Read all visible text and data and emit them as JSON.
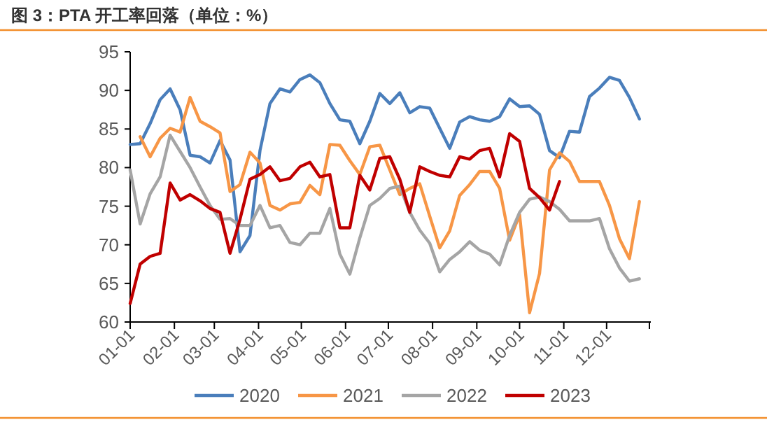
{
  "chart_data": {
    "type": "line",
    "title": "图 3：PTA 开工率回落（单位：%）",
    "x": [
      "--01-01",
      "--01-08",
      "--01-15",
      "--01-22",
      "--01-29",
      "--02-05",
      "--02-12",
      "--02-19",
      "--02-26",
      "--03-05",
      "--03-12",
      "--03-19",
      "--03-26",
      "--04-02",
      "--04-09",
      "--04-16",
      "--04-23",
      "--04-30",
      "--05-07",
      "--05-14",
      "--05-21",
      "--05-28",
      "--06-04",
      "--06-11",
      "--06-18",
      "--06-25",
      "--07-02",
      "--07-09",
      "--07-16",
      "--07-23",
      "--07-30",
      "--08-06",
      "--08-13",
      "--08-20",
      "--08-27",
      "--09-03",
      "--09-10",
      "--09-17",
      "--09-24",
      "--10-01",
      "--10-08",
      "--10-15",
      "--10-22",
      "--10-29",
      "--11-05",
      "--11-12",
      "--11-19",
      "--11-26",
      "--12-03",
      "--12-10",
      "--12-17",
      "--12-24"
    ],
    "series": [
      {
        "name": "2020",
        "color": "#4a7ebb",
        "values": [
          83.0,
          83.1,
          85.7,
          88.8,
          90.2,
          87.5,
          81.6,
          81.4,
          80.6,
          83.5,
          81.0,
          69.1,
          71.2,
          82.2,
          88.3,
          90.2,
          89.8,
          91.4,
          92.0,
          91.0,
          88.3,
          86.2,
          86.0,
          83.1,
          86.0,
          89.6,
          88.3,
          89.7,
          87.1,
          87.9,
          87.7,
          85.1,
          82.5,
          85.9,
          86.6,
          86.2,
          86.0,
          86.6,
          88.9,
          87.9,
          88.0,
          86.9,
          82.2,
          81.3,
          84.7,
          84.6,
          89.2,
          90.3,
          91.7,
          91.3,
          89.1,
          86.3
        ]
      },
      {
        "name": "2021",
        "color": "#f79646",
        "values": [
          null,
          84.0,
          81.4,
          83.8,
          85.1,
          84.6,
          89.1,
          86.0,
          85.3,
          84.5,
          76.9,
          77.8,
          82.0,
          80.6,
          75.1,
          74.5,
          75.3,
          75.5,
          77.7,
          76.5,
          83.0,
          82.9,
          80.9,
          79.1,
          82.7,
          82.9,
          79.7,
          76.5,
          77.3,
          77.9,
          73.7,
          69.6,
          71.8,
          76.4,
          77.8,
          79.5,
          79.5,
          77.3,
          70.6,
          73.9,
          61.2,
          66.3,
          79.7,
          81.9,
          80.8,
          78.2,
          78.2,
          78.2,
          75.1,
          70.8,
          68.2,
          75.6
        ]
      },
      {
        "name": "2022",
        "color": "#a5a5a5",
        "values": [
          79.7,
          72.7,
          76.6,
          78.8,
          84.2,
          82.1,
          80.0,
          77.5,
          75.1,
          73.3,
          73.4,
          72.5,
          72.5,
          75.1,
          72.2,
          72.5,
          70.3,
          70.0,
          71.5,
          71.5,
          74.7,
          68.8,
          66.2,
          70.9,
          75.1,
          76.0,
          77.3,
          77.6,
          74.2,
          71.9,
          70.2,
          66.5,
          68.1,
          69.1,
          70.4,
          69.3,
          68.8,
          67.4,
          71.2,
          74.2,
          75.9,
          76.2,
          75.6,
          74.6,
          73.1,
          73.1,
          73.1,
          73.4,
          69.5,
          67.0,
          65.3,
          65.6
        ]
      },
      {
        "name": "2023",
        "color": "#c00000",
        "values": [
          62.4,
          67.5,
          68.5,
          68.9,
          78.0,
          75.8,
          76.5,
          75.7,
          74.7,
          74.2,
          68.9,
          73.3,
          78.5,
          79.1,
          80.1,
          78.3,
          78.6,
          80.1,
          80.7,
          78.8,
          79.1,
          72.2,
          72.2,
          79.0,
          77.1,
          81.2,
          81.4,
          78.5,
          74.2,
          80.1,
          79.5,
          79.0,
          78.8,
          81.4,
          81.1,
          82.2,
          82.5,
          78.8,
          84.4,
          83.4,
          77.3,
          76.1,
          74.5,
          78.2,
          null,
          null,
          null,
          null,
          null,
          null,
          null,
          null
        ]
      }
    ],
    "xlim": [
      "--01-01",
      "--12-31"
    ],
    "xticks": [
      {
        "value": "--01-01",
        "label": "01-01"
      },
      {
        "value": "--02-01",
        "label": "02-01"
      },
      {
        "value": "--03-01",
        "label": "03-01"
      },
      {
        "value": "--04-01",
        "label": "04-01"
      },
      {
        "value": "--05-01",
        "label": "05-01"
      },
      {
        "value": "--06-01",
        "label": "06-01"
      },
      {
        "value": "--07-01",
        "label": "07-01"
      },
      {
        "value": "--08-01",
        "label": "08-01"
      },
      {
        "value": "--09-01",
        "label": "09-01"
      },
      {
        "value": "--10-01",
        "label": "10-01"
      },
      {
        "value": "--11-01",
        "label": "11-01"
      },
      {
        "value": "--12-01",
        "label": "12-01"
      },
      {
        "value": "--12-31",
        "label": null
      }
    ],
    "ylim": [
      60,
      95
    ],
    "yticks": [
      60,
      65,
      70,
      75,
      80,
      85,
      90,
      95
    ],
    "grid": false,
    "legend": "bottom",
    "marker": "none",
    "line_style": "solid"
  }
}
